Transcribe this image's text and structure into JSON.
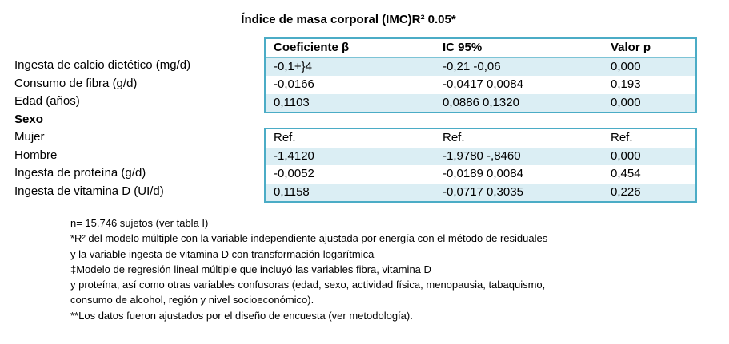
{
  "title": "Índice de masa corporal (IMC)R² 0.05*",
  "table": {
    "headers": [
      "Coeficiente β",
      "IC 95%",
      "Valor p"
    ],
    "rows": [
      {
        "label": "Ingesta de calcio dietético (mg/d)",
        "coef": "-0,1+}4",
        "ic": "-0,21 -0,06",
        "p": "0,000"
      },
      {
        "label": "Consumo de fibra (g/d)",
        "coef": "-0,0166",
        "ic": "-0,0417 0,0084",
        "p": "0,193"
      },
      {
        "label": "Edad (años)",
        "coef": "0,1103",
        "ic": "0,0886 0,1320",
        "p": "0,000"
      }
    ],
    "section_label": "Sexo",
    "rows2": [
      {
        "label": "Mujer",
        "coef": "Ref.",
        "ic": "Ref.",
        "p": "Ref."
      },
      {
        "label": "Hombre",
        "coef": "-1,4120",
        "ic": "-1,9780 -,8460",
        "p": "0,000"
      },
      {
        "label": "Ingesta de proteína (g/d)",
        "coef": "-0,0052",
        "ic": "-0,0189 0,0084",
        "p": "0,454"
      },
      {
        "label": "Ingesta de vitamina D (UI/d)",
        "coef": "0,1158",
        "ic": "-0,0717 0,3035",
        "p": "0,226"
      }
    ]
  },
  "notes": [
    "n= 15.746 sujetos (ver tabla I)",
    "*R² del modelo múltiple con la variable independiente ajustada por energía con el método de residuales",
    "y la variable ingesta de vitamina D con transformación logarítmica",
    "‡Modelo de regresión lineal múltiple que incluyó las variables fibra, vitamina D",
    "y proteína, así como otras variables confusoras (edad, sexo, actividad física, menopausia, tabaquismo,",
    "consumo de alcohol, región y nivel socioeconómico).",
    "**Los datos fueron ajustados por el diseño de encuesta (ver metodología)."
  ]
}
